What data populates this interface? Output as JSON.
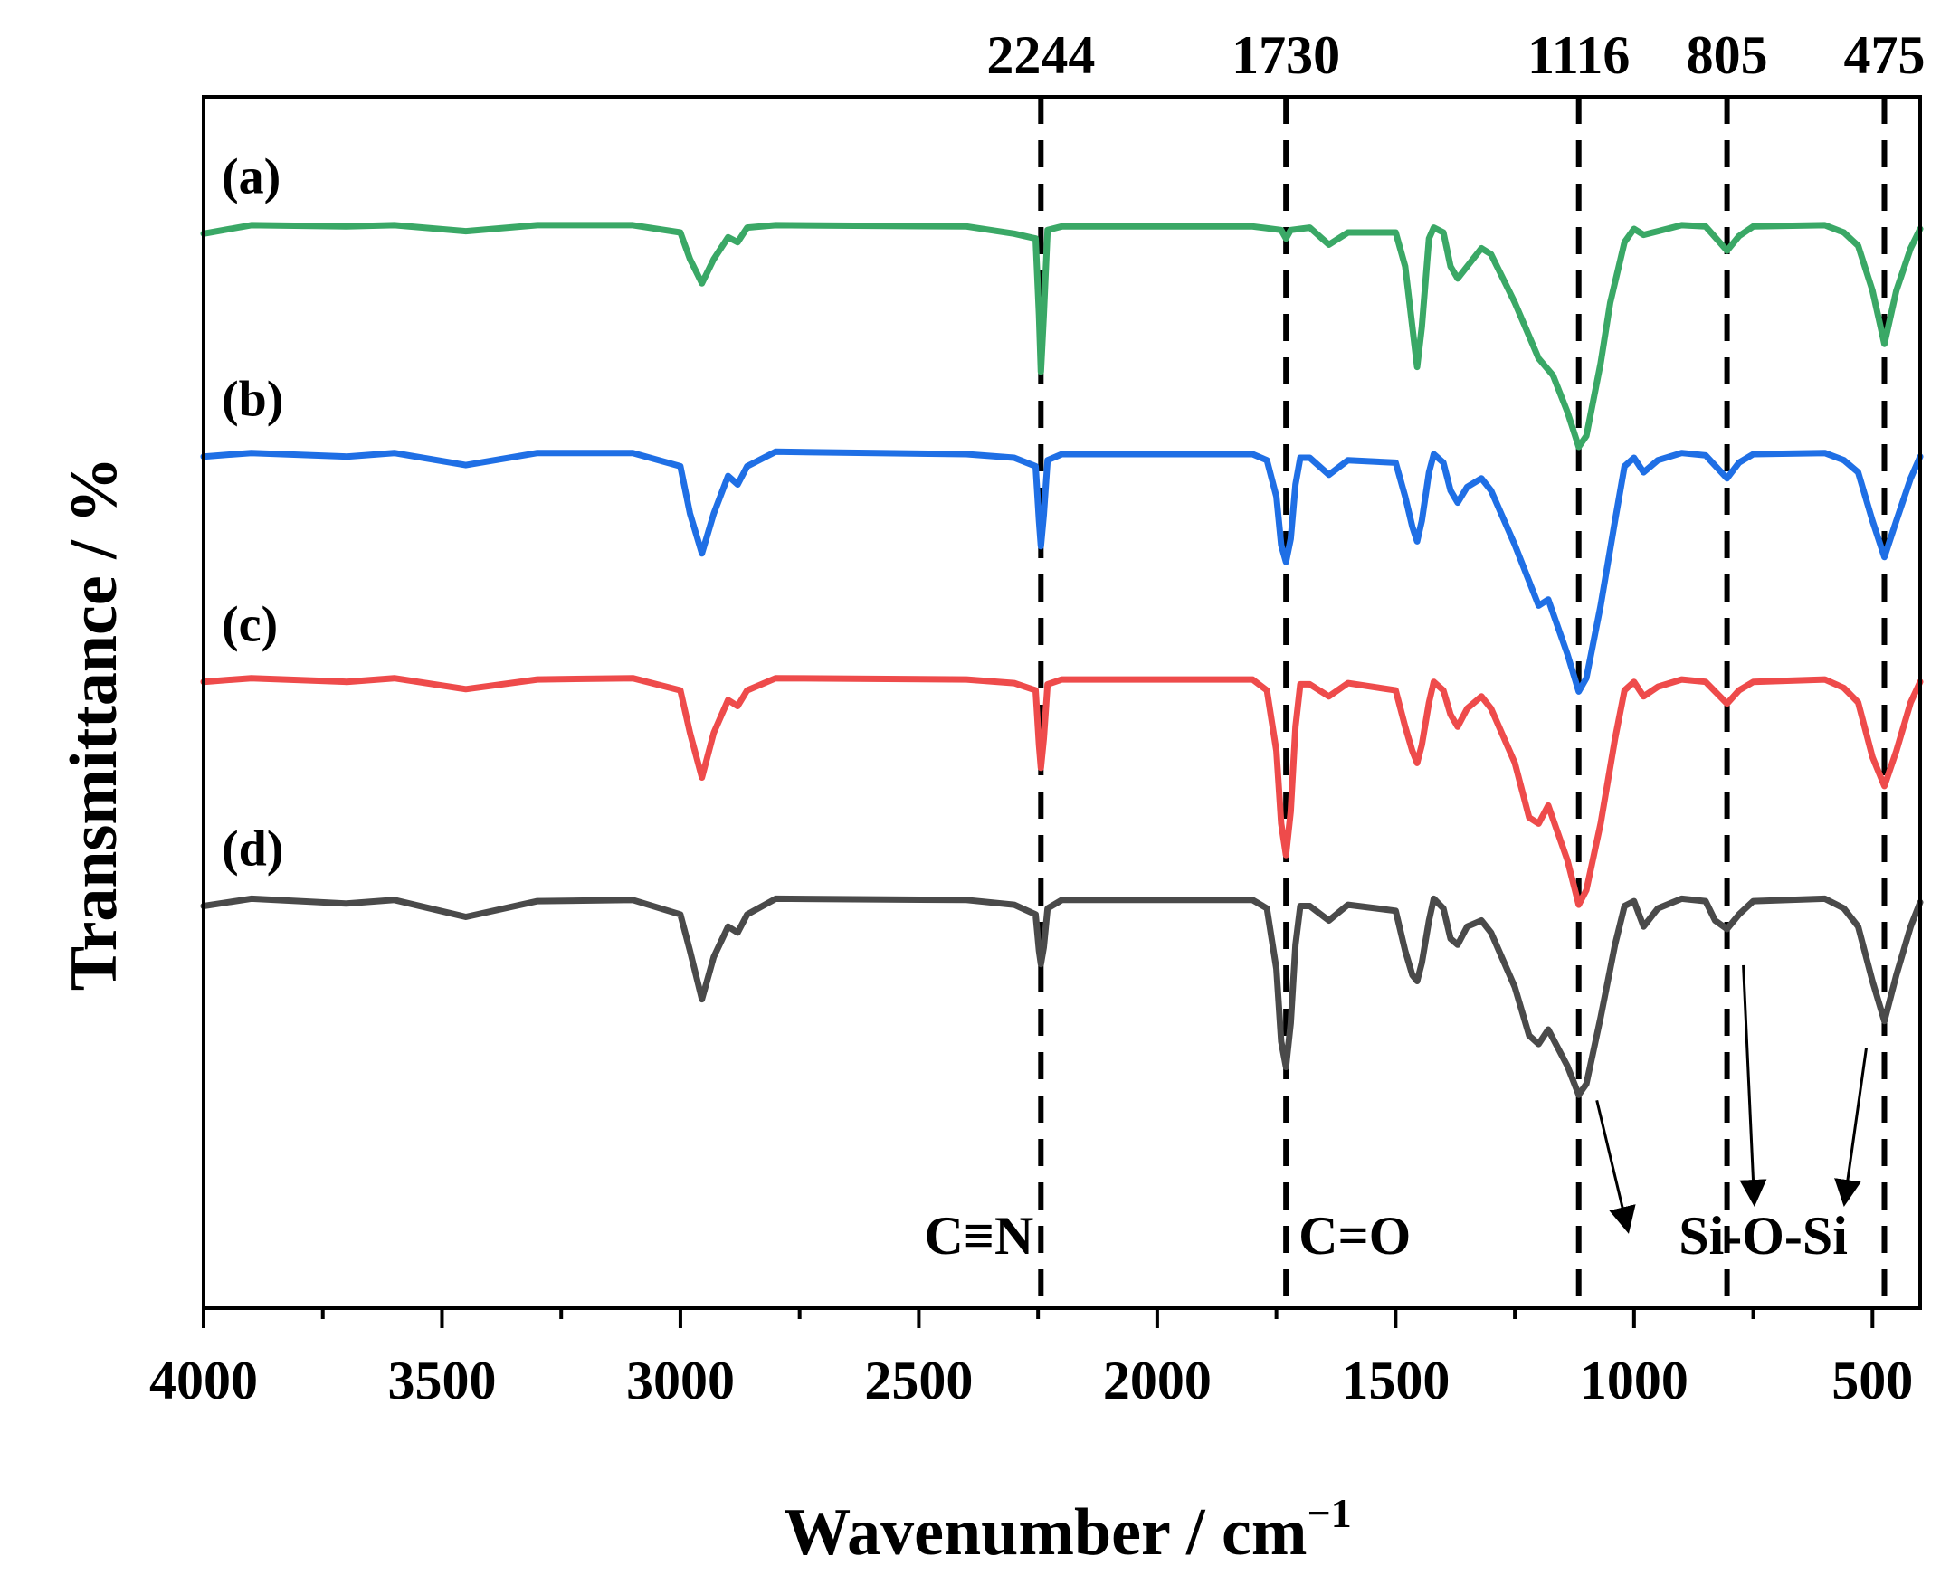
{
  "chart_data": {
    "type": "line",
    "title": "",
    "xlabel": "Wavenumber / cm",
    "xlabel_superscript": "−1",
    "ylabel": "Transmittance / %",
    "xlim": [
      4000,
      400
    ],
    "ylim": [
      0,
      100
    ],
    "x_ticks": [
      4000,
      3500,
      3000,
      2500,
      2000,
      1500,
      1000,
      500
    ],
    "y_ticks_shown": false,
    "grid": false,
    "legend": "inline-left",
    "series": [
      {
        "name": "(a)",
        "label": "(a)",
        "color": "#3aa866",
        "points": [
          [
            4000,
            88.7
          ],
          [
            3900,
            89.4
          ],
          [
            3700,
            89.3
          ],
          [
            3600,
            89.4
          ],
          [
            3450,
            88.9
          ],
          [
            3300,
            89.4
          ],
          [
            3100,
            89.4
          ],
          [
            3000,
            88.8
          ],
          [
            2980,
            86.6
          ],
          [
            2955,
            84.6
          ],
          [
            2930,
            86.6
          ],
          [
            2900,
            88.4
          ],
          [
            2880,
            88.0
          ],
          [
            2860,
            89.2
          ],
          [
            2800,
            89.4
          ],
          [
            2400,
            89.3
          ],
          [
            2300,
            88.7
          ],
          [
            2255,
            88.3
          ],
          [
            2248,
            82.0
          ],
          [
            2244,
            77.3
          ],
          [
            2238,
            82.0
          ],
          [
            2230,
            89.0
          ],
          [
            2200,
            89.3
          ],
          [
            1800,
            89.3
          ],
          [
            1740,
            89.0
          ],
          [
            1730,
            88.3
          ],
          [
            1720,
            89.0
          ],
          [
            1680,
            89.2
          ],
          [
            1640,
            87.8
          ],
          [
            1600,
            88.8
          ],
          [
            1500,
            88.8
          ],
          [
            1480,
            86.0
          ],
          [
            1465,
            81.0
          ],
          [
            1455,
            77.7
          ],
          [
            1445,
            81.0
          ],
          [
            1430,
            88.3
          ],
          [
            1420,
            89.2
          ],
          [
            1400,
            88.8
          ],
          [
            1385,
            86.0
          ],
          [
            1370,
            85.0
          ],
          [
            1350,
            86.0
          ],
          [
            1320,
            87.5
          ],
          [
            1300,
            87.0
          ],
          [
            1250,
            83.0
          ],
          [
            1200,
            78.4
          ],
          [
            1170,
            77.0
          ],
          [
            1140,
            74.0
          ],
          [
            1116,
            71.1
          ],
          [
            1100,
            72.0
          ],
          [
            1070,
            78.0
          ],
          [
            1050,
            83.0
          ],
          [
            1020,
            88.0
          ],
          [
            1000,
            89.1
          ],
          [
            980,
            88.6
          ],
          [
            950,
            88.9
          ],
          [
            900,
            89.4
          ],
          [
            850,
            89.3
          ],
          [
            805,
            87.3
          ],
          [
            780,
            88.5
          ],
          [
            750,
            89.3
          ],
          [
            600,
            89.4
          ],
          [
            560,
            88.8
          ],
          [
            530,
            87.7
          ],
          [
            500,
            84.0
          ],
          [
            475,
            79.6
          ],
          [
            450,
            84.0
          ],
          [
            420,
            87.5
          ],
          [
            400,
            89.1
          ]
        ]
      },
      {
        "name": "(b)",
        "label": "(b)",
        "color": "#1f6fe5",
        "points": [
          [
            4000,
            70.3
          ],
          [
            3900,
            70.6
          ],
          [
            3700,
            70.3
          ],
          [
            3600,
            70.6
          ],
          [
            3450,
            69.6
          ],
          [
            3300,
            70.6
          ],
          [
            3100,
            70.6
          ],
          [
            3000,
            69.5
          ],
          [
            2980,
            65.6
          ],
          [
            2955,
            62.3
          ],
          [
            2930,
            65.6
          ],
          [
            2900,
            68.7
          ],
          [
            2880,
            68.0
          ],
          [
            2860,
            69.5
          ],
          [
            2800,
            70.7
          ],
          [
            2400,
            70.5
          ],
          [
            2300,
            70.2
          ],
          [
            2255,
            69.5
          ],
          [
            2248,
            65.0
          ],
          [
            2244,
            62.9
          ],
          [
            2238,
            65.5
          ],
          [
            2230,
            70.0
          ],
          [
            2200,
            70.5
          ],
          [
            1800,
            70.5
          ],
          [
            1770,
            70.0
          ],
          [
            1750,
            67.0
          ],
          [
            1740,
            63.0
          ],
          [
            1730,
            61.6
          ],
          [
            1720,
            63.5
          ],
          [
            1710,
            68.0
          ],
          [
            1700,
            70.2
          ],
          [
            1680,
            70.2
          ],
          [
            1640,
            68.8
          ],
          [
            1600,
            70.0
          ],
          [
            1500,
            69.8
          ],
          [
            1480,
            67.0
          ],
          [
            1465,
            64.5
          ],
          [
            1455,
            63.3
          ],
          [
            1445,
            65.0
          ],
          [
            1430,
            69.0
          ],
          [
            1420,
            70.5
          ],
          [
            1400,
            69.8
          ],
          [
            1385,
            67.5
          ],
          [
            1370,
            66.5
          ],
          [
            1350,
            67.8
          ],
          [
            1320,
            68.5
          ],
          [
            1300,
            67.5
          ],
          [
            1250,
            63.0
          ],
          [
            1200,
            58.0
          ],
          [
            1180,
            58.5
          ],
          [
            1140,
            54.0
          ],
          [
            1116,
            50.9
          ],
          [
            1100,
            52.0
          ],
          [
            1070,
            58.0
          ],
          [
            1040,
            65.0
          ],
          [
            1020,
            69.5
          ],
          [
            1000,
            70.2
          ],
          [
            980,
            69.0
          ],
          [
            950,
            70.0
          ],
          [
            900,
            70.6
          ],
          [
            850,
            70.4
          ],
          [
            805,
            68.5
          ],
          [
            780,
            69.8
          ],
          [
            750,
            70.5
          ],
          [
            600,
            70.6
          ],
          [
            560,
            70.0
          ],
          [
            530,
            69.0
          ],
          [
            500,
            65.0
          ],
          [
            475,
            62.0
          ],
          [
            450,
            65.0
          ],
          [
            420,
            68.5
          ],
          [
            400,
            70.3
          ]
        ]
      },
      {
        "name": "(c)",
        "label": "(c)",
        "color": "#ee4b4b",
        "points": [
          [
            4000,
            51.7
          ],
          [
            3900,
            52.0
          ],
          [
            3700,
            51.7
          ],
          [
            3600,
            52.0
          ],
          [
            3450,
            51.1
          ],
          [
            3300,
            51.9
          ],
          [
            3100,
            52.0
          ],
          [
            3000,
            51.0
          ],
          [
            2980,
            47.5
          ],
          [
            2955,
            43.8
          ],
          [
            2930,
            47.5
          ],
          [
            2900,
            50.2
          ],
          [
            2880,
            49.7
          ],
          [
            2860,
            51.0
          ],
          [
            2800,
            52.0
          ],
          [
            2400,
            51.9
          ],
          [
            2300,
            51.6
          ],
          [
            2255,
            51.0
          ],
          [
            2248,
            46.5
          ],
          [
            2244,
            44.6
          ],
          [
            2238,
            47.0
          ],
          [
            2230,
            51.5
          ],
          [
            2200,
            51.9
          ],
          [
            1800,
            51.9
          ],
          [
            1770,
            51.0
          ],
          [
            1750,
            46.0
          ],
          [
            1740,
            40.0
          ],
          [
            1730,
            37.4
          ],
          [
            1720,
            41.0
          ],
          [
            1710,
            48.0
          ],
          [
            1700,
            51.5
          ],
          [
            1680,
            51.5
          ],
          [
            1640,
            50.5
          ],
          [
            1600,
            51.6
          ],
          [
            1500,
            51.0
          ],
          [
            1480,
            48.0
          ],
          [
            1465,
            46.0
          ],
          [
            1455,
            45.0
          ],
          [
            1445,
            46.5
          ],
          [
            1430,
            50.0
          ],
          [
            1420,
            51.7
          ],
          [
            1400,
            51.0
          ],
          [
            1385,
            49.0
          ],
          [
            1370,
            48.0
          ],
          [
            1350,
            49.5
          ],
          [
            1320,
            50.5
          ],
          [
            1300,
            49.5
          ],
          [
            1250,
            45.0
          ],
          [
            1220,
            40.5
          ],
          [
            1200,
            40.0
          ],
          [
            1180,
            41.5
          ],
          [
            1140,
            37.0
          ],
          [
            1116,
            33.3
          ],
          [
            1100,
            34.5
          ],
          [
            1070,
            40.0
          ],
          [
            1040,
            47.0
          ],
          [
            1020,
            51.0
          ],
          [
            1000,
            51.7
          ],
          [
            980,
            50.5
          ],
          [
            950,
            51.3
          ],
          [
            900,
            51.9
          ],
          [
            850,
            51.7
          ],
          [
            805,
            49.9
          ],
          [
            780,
            51.0
          ],
          [
            750,
            51.7
          ],
          [
            600,
            51.9
          ],
          [
            560,
            51.2
          ],
          [
            530,
            50.0
          ],
          [
            500,
            45.5
          ],
          [
            475,
            43.1
          ],
          [
            450,
            46.0
          ],
          [
            420,
            50.0
          ],
          [
            400,
            51.7
          ]
        ]
      },
      {
        "name": "(d)",
        "label": "(d)",
        "color": "#4a4a4a",
        "points": [
          [
            4000,
            33.2
          ],
          [
            3900,
            33.8
          ],
          [
            3700,
            33.4
          ],
          [
            3600,
            33.7
          ],
          [
            3450,
            32.3
          ],
          [
            3300,
            33.6
          ],
          [
            3100,
            33.7
          ],
          [
            3000,
            32.5
          ],
          [
            2980,
            29.5
          ],
          [
            2955,
            25.5
          ],
          [
            2930,
            29.0
          ],
          [
            2900,
            31.5
          ],
          [
            2880,
            31.0
          ],
          [
            2860,
            32.5
          ],
          [
            2800,
            33.8
          ],
          [
            2400,
            33.7
          ],
          [
            2300,
            33.3
          ],
          [
            2255,
            32.5
          ],
          [
            2248,
            29.5
          ],
          [
            2244,
            28.4
          ],
          [
            2238,
            29.8
          ],
          [
            2230,
            33.0
          ],
          [
            2200,
            33.7
          ],
          [
            1800,
            33.7
          ],
          [
            1770,
            33.0
          ],
          [
            1750,
            28.0
          ],
          [
            1740,
            22.0
          ],
          [
            1730,
            19.9
          ],
          [
            1720,
            23.5
          ],
          [
            1710,
            30.0
          ],
          [
            1700,
            33.2
          ],
          [
            1680,
            33.2
          ],
          [
            1640,
            32.0
          ],
          [
            1600,
            33.3
          ],
          [
            1500,
            32.8
          ],
          [
            1480,
            29.5
          ],
          [
            1465,
            27.5
          ],
          [
            1455,
            27.0
          ],
          [
            1445,
            28.5
          ],
          [
            1430,
            32.0
          ],
          [
            1420,
            33.8
          ],
          [
            1400,
            33.0
          ],
          [
            1385,
            30.5
          ],
          [
            1370,
            30.0
          ],
          [
            1350,
            31.5
          ],
          [
            1320,
            32.0
          ],
          [
            1300,
            31.0
          ],
          [
            1250,
            26.5
          ],
          [
            1220,
            22.5
          ],
          [
            1200,
            21.8
          ],
          [
            1180,
            23.0
          ],
          [
            1140,
            20.0
          ],
          [
            1116,
            17.6
          ],
          [
            1100,
            18.5
          ],
          [
            1070,
            24.0
          ],
          [
            1040,
            30.0
          ],
          [
            1020,
            33.2
          ],
          [
            1000,
            33.6
          ],
          [
            980,
            31.5
          ],
          [
            950,
            33.0
          ],
          [
            900,
            33.8
          ],
          [
            850,
            33.6
          ],
          [
            830,
            32.0
          ],
          [
            805,
            31.3
          ],
          [
            780,
            32.5
          ],
          [
            750,
            33.6
          ],
          [
            600,
            33.8
          ],
          [
            560,
            33.0
          ],
          [
            530,
            31.5
          ],
          [
            500,
            27.0
          ],
          [
            475,
            23.7
          ],
          [
            450,
            27.5
          ],
          [
            420,
            31.5
          ],
          [
            400,
            33.5
          ]
        ]
      }
    ],
    "vertical_markers": [
      {
        "x": 2244,
        "label": "2244"
      },
      {
        "x": 1730,
        "label": "1730"
      },
      {
        "x": 1116,
        "label": "1116"
      },
      {
        "x": 805,
        "label": "805"
      },
      {
        "x": 475,
        "label": "475"
      }
    ],
    "annotations": [
      {
        "text": "C≡N",
        "x": 2244
      },
      {
        "text": "C=O",
        "x": 1730
      },
      {
        "text": "Si-O-Si",
        "x": 805
      }
    ]
  }
}
